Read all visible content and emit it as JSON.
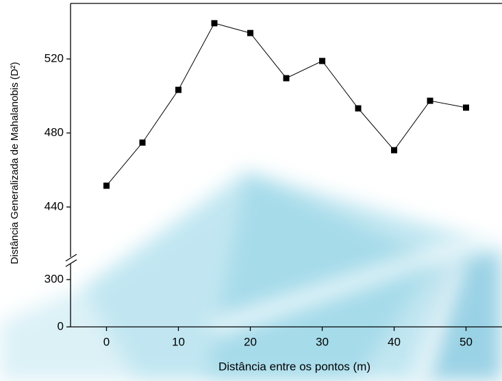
{
  "chart_data": {
    "type": "line",
    "x_label": "Distância entre os pontos (m)",
    "y_label": "Distância Generalizada de Mahalanobis (D²)",
    "x": [
      0,
      5,
      10,
      15,
      20,
      25,
      30,
      35,
      40,
      45,
      50
    ],
    "series": [
      {
        "color": "#000000",
        "values": [
          451.5,
          474.8,
          503.3,
          539.3,
          534,
          509.6,
          518.9,
          493.3,
          470.7,
          497.4,
          493.7
        ]
      }
    ],
    "xlim": [
      -5,
      55
    ],
    "xticks": [
      0,
      10,
      20,
      30,
      40,
      50
    ],
    "y_segments": [
      {
        "ylim": [
          0,
          400
        ],
        "yticks": [
          0,
          300
        ]
      },
      {
        "ylim": [
          413,
          550
        ],
        "yticks": [
          440,
          480,
          520
        ]
      }
    ]
  }
}
